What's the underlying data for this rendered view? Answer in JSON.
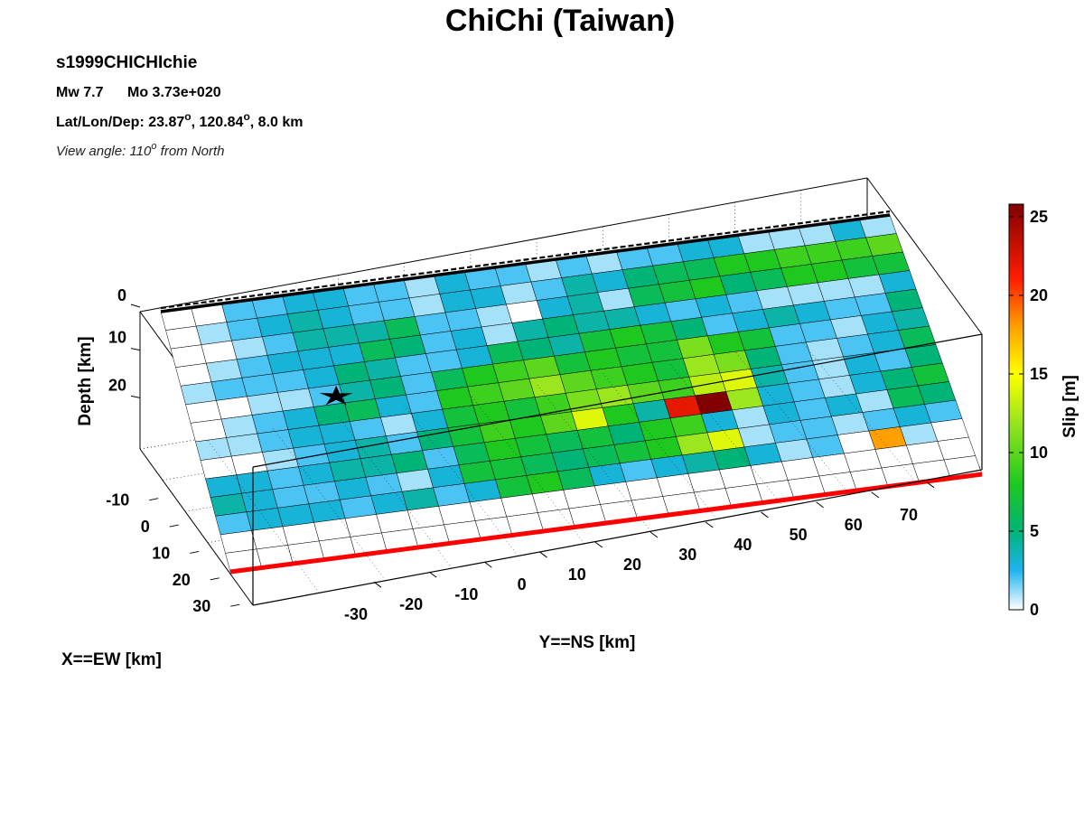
{
  "title": "ChiChi (Taiwan)",
  "event_id": "s1999CHICHIchie",
  "magnitude": "Mw 7.7",
  "moment": "Mo 3.73e+020",
  "location": {
    "prefix": "Lat/Lon/Dep: ",
    "lat": "23.87",
    "lon": "120.84",
    "dep_suffix": ", 8.0 km",
    "degree_symbol": "o"
  },
  "view_angle": {
    "prefix": "View angle: ",
    "value": "110",
    "degree_symbol": "o",
    "suffix": " from North"
  },
  "chart_data": {
    "type": "heatmap",
    "view": "3d-fault-plane",
    "axes": {
      "x": {
        "label": "X==EW [km]",
        "ticks": [
          "-10",
          "0",
          "10",
          "20",
          "30"
        ],
        "range": [
          -15,
          33
        ]
      },
      "y": {
        "label": "Y==NS [km]",
        "ticks": [
          "-30",
          "-20",
          "-10",
          "0",
          "10",
          "20",
          "30",
          "40",
          "50",
          "60",
          "70"
        ],
        "range": [
          -38,
          78
        ]
      },
      "z": {
        "label": "Depth [km]",
        "ticks": [
          "0",
          "10",
          "20"
        ],
        "range": [
          0,
          30
        ]
      }
    },
    "grid": true,
    "colorbar": {
      "label": "Slip [m]",
      "min": 0,
      "max": 25.8,
      "ticks": [
        "0",
        "5",
        "10",
        "15",
        "20",
        "25"
      ],
      "stops": [
        {
          "v": 0,
          "c": "#ffffff"
        },
        {
          "v": 2.5,
          "c": "#1eb4f0"
        },
        {
          "v": 5,
          "c": "#00b478"
        },
        {
          "v": 8,
          "c": "#1ec81e"
        },
        {
          "v": 12,
          "c": "#9be61e"
        },
        {
          "v": 15,
          "c": "#ffff00"
        },
        {
          "v": 18,
          "c": "#ffa000"
        },
        {
          "v": 21,
          "c": "#ff1e00"
        },
        {
          "v": 25.8,
          "c": "#820000"
        }
      ]
    },
    "fault": {
      "n_strike": 24,
      "n_dip": 14,
      "slip": [
        [
          0,
          0,
          2,
          2,
          3,
          3,
          2,
          2,
          1,
          3,
          2,
          2,
          1,
          2,
          1,
          2,
          2,
          3,
          3,
          1,
          1,
          1,
          3,
          1
        ],
        [
          0,
          1,
          2,
          3,
          4,
          3,
          2,
          2,
          1,
          3,
          3,
          1,
          2,
          4,
          3,
          5,
          6,
          6,
          8,
          8,
          9,
          9,
          9,
          10
        ],
        [
          0,
          0,
          1,
          2,
          4,
          4,
          4,
          6,
          2,
          2,
          1,
          0,
          3,
          4,
          1,
          6,
          7,
          8,
          5,
          6,
          8,
          8,
          7,
          7
        ],
        [
          0,
          1,
          2,
          3,
          3,
          3,
          6,
          5,
          2,
          3,
          1,
          4,
          5,
          4,
          4,
          3,
          2,
          3,
          2,
          1,
          1,
          1,
          1,
          3
        ],
        [
          1,
          2,
          2,
          2,
          3,
          5,
          4,
          2,
          2,
          3,
          6,
          5,
          4,
          7,
          8,
          7,
          5,
          2,
          3,
          4,
          3,
          2,
          2,
          5
        ],
        [
          0,
          0,
          1,
          1,
          2,
          4,
          5,
          2,
          6,
          8,
          9,
          10,
          7,
          8,
          7,
          7,
          11,
          8,
          7,
          2,
          2,
          1,
          3,
          4
        ],
        [
          0,
          1,
          2,
          3,
          5,
          6,
          3,
          2,
          8,
          9,
          10,
          12,
          10,
          9,
          8,
          7,
          12,
          11,
          5,
          2,
          1,
          2,
          3,
          6
        ],
        [
          1,
          1,
          2,
          3,
          3,
          2,
          1,
          3,
          7,
          8,
          7,
          9,
          11,
          12,
          10,
          9,
          13,
          14,
          4,
          2,
          1,
          3,
          2,
          5
        ],
        [
          0,
          0,
          1,
          2,
          3,
          4,
          2,
          5,
          7,
          9,
          8,
          10,
          14,
          8,
          4,
          22,
          26,
          12,
          3,
          2,
          1,
          3,
          5,
          7
        ],
        [
          3,
          3,
          2,
          3,
          4,
          4,
          5,
          2,
          6,
          8,
          7,
          6,
          7,
          5,
          8,
          9,
          3,
          1,
          3,
          2,
          3,
          1,
          6,
          5
        ],
        [
          4,
          3,
          2,
          2,
          3,
          2,
          1,
          3,
          7,
          7,
          6,
          5,
          6,
          7,
          8,
          12,
          14,
          1,
          2,
          2,
          1,
          2,
          3,
          2
        ],
        [
          2,
          3,
          3,
          3,
          2,
          3,
          4,
          2,
          3,
          7,
          8,
          6,
          3,
          2,
          3,
          4,
          5,
          3,
          1,
          2,
          0,
          18,
          1,
          0
        ],
        [
          0,
          0,
          0,
          0,
          0,
          0,
          0,
          0,
          0,
          0,
          0,
          0,
          0,
          0,
          0,
          0,
          0,
          0,
          0,
          0,
          0,
          0,
          0,
          0
        ],
        [
          0,
          0,
          0,
          0,
          0,
          0,
          0,
          0,
          0,
          0,
          0,
          0,
          0,
          0,
          0,
          0,
          0,
          0,
          0,
          0,
          0,
          0,
          0,
          0
        ]
      ]
    },
    "hypocenter": {
      "strike_frac": 0.2,
      "dip_frac": 0.4
    },
    "surface_trace_color": "#ff0000",
    "fault_top_color": "#000000"
  }
}
